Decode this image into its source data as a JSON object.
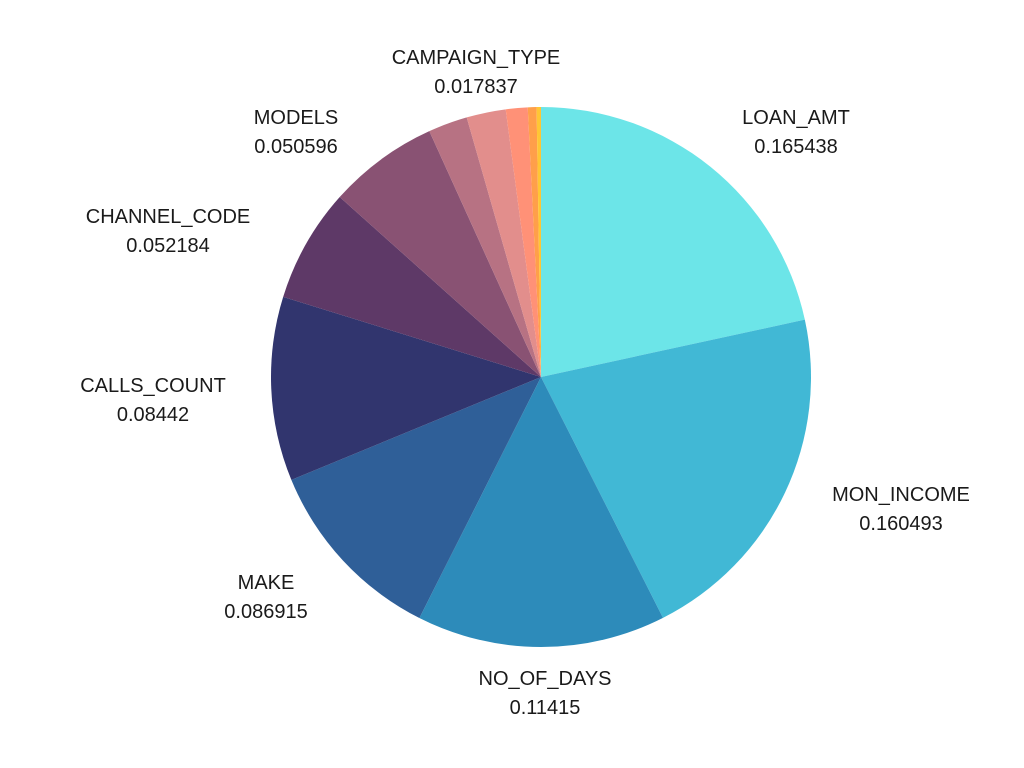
{
  "chart_data": {
    "type": "pie",
    "title": "",
    "start_angle_deg": 0,
    "direction": "clockwise",
    "slices": [
      {
        "label": "LOAN_AMT",
        "value": 0.165438,
        "value_text": "0.165438",
        "color": "#6CE5E8",
        "show_label": true
      },
      {
        "label": "MON_INCOME",
        "value": 0.160493,
        "value_text": "0.160493",
        "color": "#41B8D5",
        "show_label": true
      },
      {
        "label": "NO_OF_DAYS",
        "value": 0.11415,
        "value_text": "0.11415",
        "color": "#2D8BBA",
        "show_label": true
      },
      {
        "label": "MAKE",
        "value": 0.086915,
        "value_text": "0.086915",
        "color": "#2F5F98",
        "show_label": true
      },
      {
        "label": "CALLS_COUNT",
        "value": 0.08442,
        "value_text": "0.08442",
        "color": "#31356E",
        "show_label": true
      },
      {
        "label": "CHANNEL_CODE",
        "value": 0.052184,
        "value_text": "0.052184",
        "color": "#5E3967",
        "show_label": true
      },
      {
        "label": "MODELS",
        "value": 0.050596,
        "value_text": "0.050596",
        "color": "#895273",
        "show_label": true
      },
      {
        "label": "",
        "value": 0.018,
        "value_text": "",
        "color": "#B77283",
        "show_label": false
      },
      {
        "label": "",
        "value": 0.018,
        "value_text": "",
        "color": "#E28E8C",
        "show_label": false
      },
      {
        "label": "",
        "value": 0.01,
        "value_text": "",
        "color": "#FF9177",
        "show_label": false
      },
      {
        "label": "",
        "value": 0.004,
        "value_text": "",
        "color": "#FF9F4A",
        "show_label": false
      },
      {
        "label": "",
        "value": 0.002,
        "value_text": "",
        "color": "#FFC635",
        "show_label": false
      }
    ],
    "callout_label": {
      "label": "CAMPAIGN_TYPE",
      "value_text": "0.017837"
    }
  }
}
